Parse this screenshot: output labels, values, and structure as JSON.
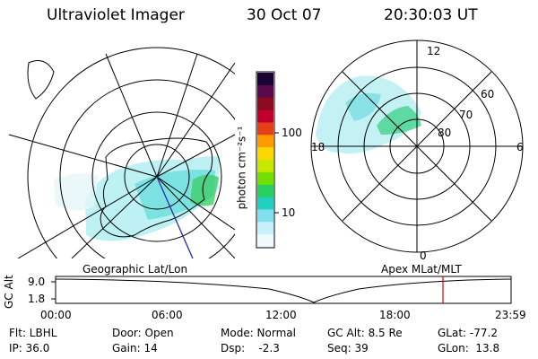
{
  "header": {
    "title": "Ultraviolet Imager",
    "date": "30 Oct 07",
    "time": "20:30:03 UT"
  },
  "colorbar": {
    "unit_label": "photon cm⁻²s⁻¹",
    "ticks": [
      "100",
      "10"
    ],
    "scale": "log",
    "colors": [
      "#1a0033",
      "#5a0a4a",
      "#8b0a22",
      "#c0002a",
      "#e5401a",
      "#ff9a00",
      "#ffd700",
      "#c8e800",
      "#74e000",
      "#28d060",
      "#22d0c0",
      "#80e0f0",
      "#c8f0f8",
      "#f0fafc"
    ]
  },
  "polar_plot": {
    "labels_outer": [
      "12",
      "18",
      "6",
      "0"
    ],
    "labels_lat": [
      "60",
      "70",
      "80"
    ]
  },
  "maps": {
    "left_caption": "Geographic Lat/Lon",
    "right_caption": "Apex MLat/MLT"
  },
  "timeline": {
    "ylabel": "GC Alt",
    "y_ticks": [
      "9.0",
      "1.8"
    ],
    "x_ticks": [
      "00:00",
      "06:00",
      "12:00",
      "18:00",
      "23:59"
    ],
    "marker_color": "#e00000"
  },
  "info": {
    "row1": [
      "Flt: LBHL",
      "Door: Open",
      "Mode: Normal",
      "GC Alt: 8.5 Re",
      "GLat: -77.2"
    ],
    "row2": [
      "IP: 36.0",
      "Gain: 14",
      "Dsp:    -2.3",
      "Seq: 39",
      "GLon:  13.8"
    ]
  }
}
